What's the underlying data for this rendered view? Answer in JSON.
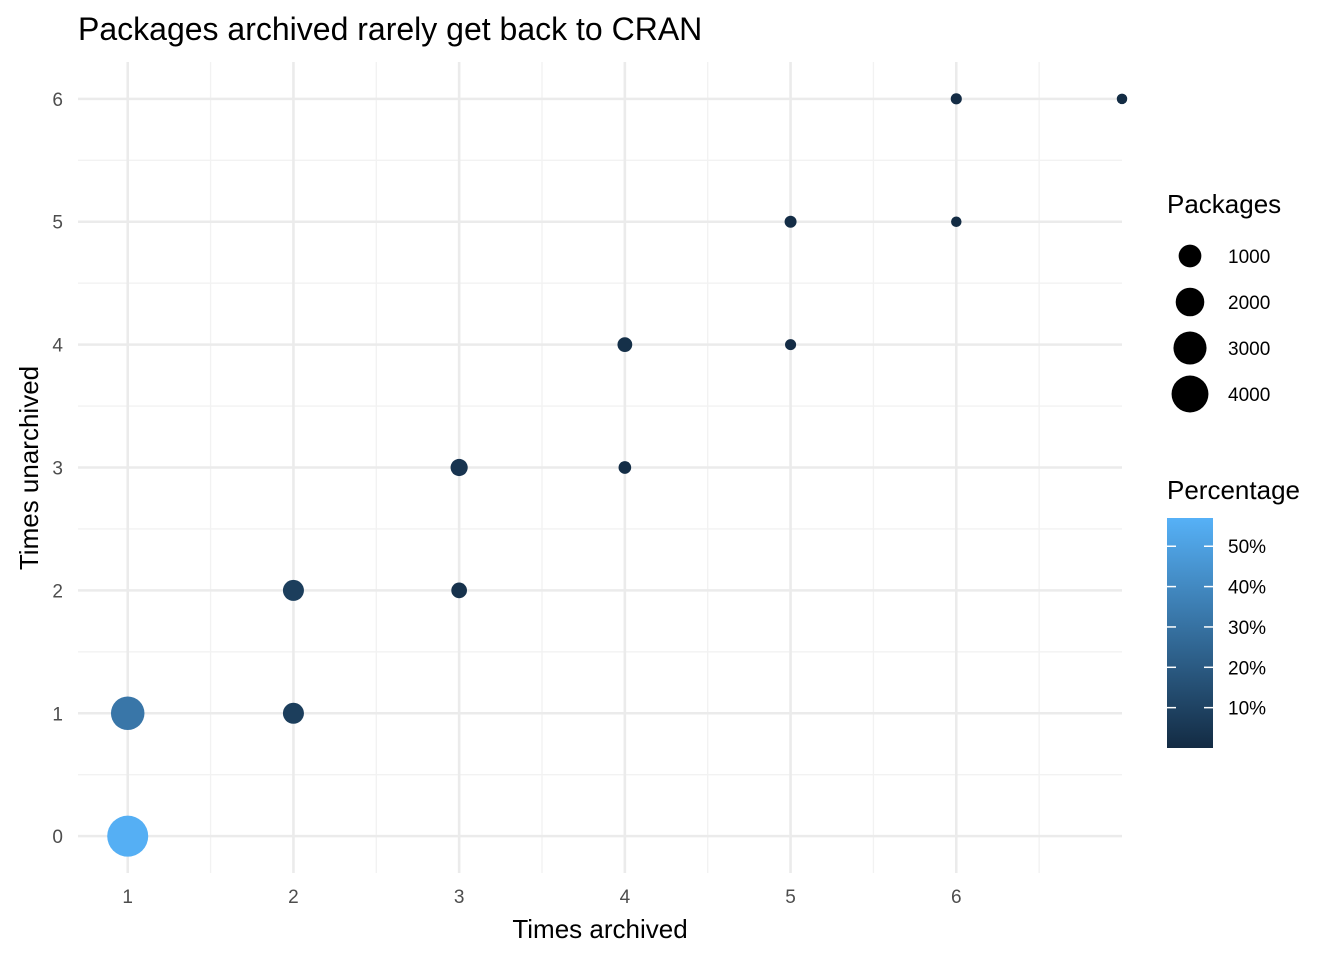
{
  "chart_data": {
    "type": "scatter",
    "title": "Packages archived rarely get back to CRAN",
    "xlabel": "Times archived",
    "ylabel": "Times unarchived",
    "xlim": [
      0.7,
      7.0
    ],
    "ylim": [
      -0.3,
      6.3
    ],
    "x_ticks": [
      1,
      2,
      3,
      4,
      5,
      6
    ],
    "y_ticks": [
      0,
      1,
      2,
      3,
      4,
      5,
      6
    ],
    "x_minor": [
      1.5,
      2.5,
      3.5,
      4.5,
      5.5,
      6.5
    ],
    "y_minor": [
      0.5,
      1.5,
      2.5,
      3.5,
      4.5,
      5.5
    ],
    "grid": true,
    "points": [
      {
        "x": 1,
        "y": 0,
        "packages": 4600,
        "percentage": 56
      },
      {
        "x": 1,
        "y": 1,
        "packages": 2700,
        "percentage": 32
      },
      {
        "x": 2,
        "y": 1,
        "packages": 650,
        "percentage": 8
      },
      {
        "x": 2,
        "y": 2,
        "packages": 650,
        "percentage": 8
      },
      {
        "x": 3,
        "y": 2,
        "packages": 200,
        "percentage": 3
      },
      {
        "x": 3,
        "y": 3,
        "packages": 300,
        "percentage": 4
      },
      {
        "x": 4,
        "y": 3,
        "packages": 60,
        "percentage": 1
      },
      {
        "x": 4,
        "y": 4,
        "packages": 150,
        "percentage": 2
      },
      {
        "x": 5,
        "y": 4,
        "packages": 20,
        "percentage": 0.5
      },
      {
        "x": 5,
        "y": 5,
        "packages": 40,
        "percentage": 0.8
      },
      {
        "x": 6,
        "y": 5,
        "packages": 10,
        "percentage": 0.3
      },
      {
        "x": 6,
        "y": 6,
        "packages": 20,
        "percentage": 0.5
      },
      {
        "x": 7,
        "y": 6,
        "packages": 10,
        "percentage": 0.3
      }
    ],
    "size_legend": {
      "title": "Packages",
      "breaks": [
        1000,
        2000,
        3000,
        4000
      ],
      "labels": [
        "1000",
        "2000",
        "3000",
        "4000"
      ]
    },
    "color_legend": {
      "title": "Percentage",
      "range": [
        0,
        57
      ],
      "breaks": [
        10,
        20,
        30,
        40,
        50
      ],
      "labels": [
        "10%",
        "20%",
        "30%",
        "40%",
        "50%"
      ],
      "low_color": "#132B43",
      "high_color": "#56B1F7"
    },
    "legend_placement": "right"
  }
}
